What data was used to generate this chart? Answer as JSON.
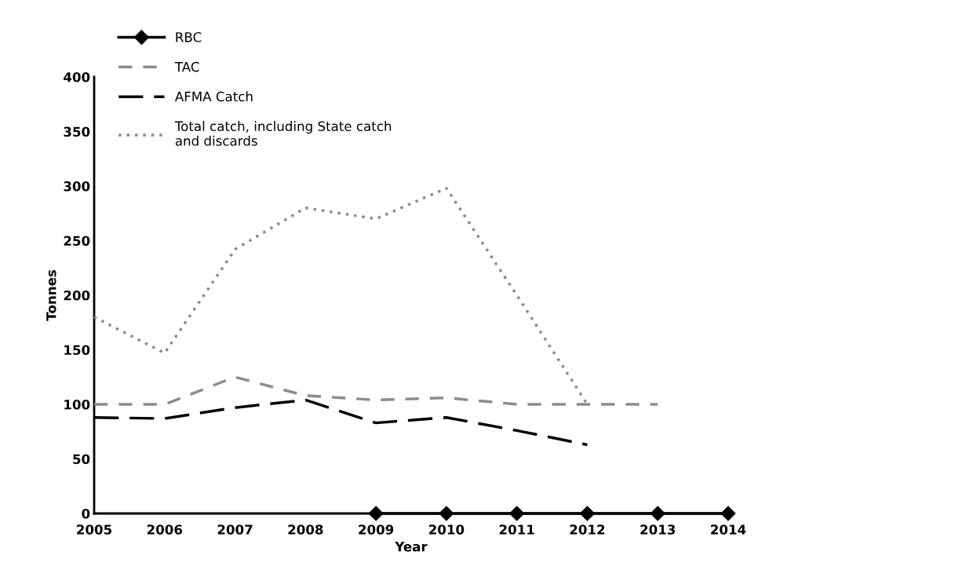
{
  "chart_data": {
    "type": "line",
    "xlabel": "Year",
    "ylabel": "Tonnes",
    "x": [
      2005,
      2006,
      2007,
      2008,
      2009,
      2010,
      2011,
      2012,
      2013,
      2014
    ],
    "xlim": [
      2005,
      2014
    ],
    "xticks": [
      2005,
      2006,
      2007,
      2008,
      2009,
      2010,
      2011,
      2012,
      2013,
      2014
    ],
    "ylim": [
      0,
      400
    ],
    "yticks": [
      0,
      50,
      100,
      150,
      200,
      250,
      300,
      350,
      400
    ],
    "grid": false,
    "legend": "top left",
    "series": [
      {
        "name": "RBC",
        "color": "#000000",
        "marker": "diamond",
        "line_style": "solid",
        "values": [
          null,
          null,
          null,
          null,
          0,
          0,
          0,
          0,
          0,
          0
        ]
      },
      {
        "name": "TAC",
        "color": "#8c8c8c",
        "marker": "none",
        "line_style": "dashed",
        "values": [
          100,
          100,
          125,
          108,
          104,
          106,
          100,
          100,
          100,
          null
        ]
      },
      {
        "name": "AFMA Catch",
        "color": "#000000",
        "marker": "none",
        "line_style": "longdash",
        "values": [
          88,
          87,
          97,
          104,
          83,
          88,
          76,
          63,
          null,
          null
        ]
      },
      {
        "name": "Total catch, including State catch\nand discards",
        "color": "#8c8c8c",
        "marker": "none",
        "line_style": "dotted",
        "values": [
          180,
          147,
          242,
          280,
          270,
          298,
          200,
          100,
          null,
          null
        ]
      }
    ]
  }
}
